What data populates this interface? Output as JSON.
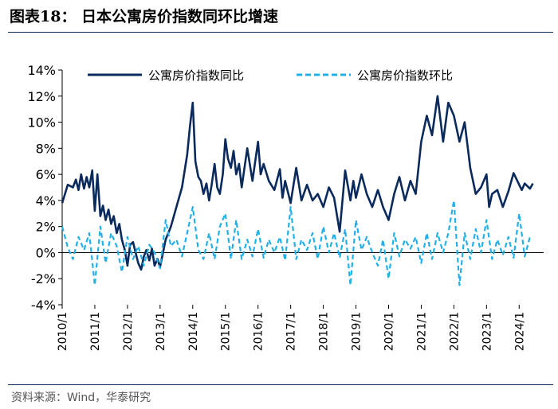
{
  "header": {
    "title": "图表18：  日本公寓房价指数同环比增速"
  },
  "footer": {
    "source": "资料来源：Wind，华泰研究"
  },
  "colors": {
    "yoy": "#0b2a5c",
    "mom": "#22b0e8",
    "rule": "#0b2a5c"
  },
  "chart_data": {
    "type": "line",
    "title": "日本公寓房价指数同环比增速",
    "xlabel": "",
    "ylabel": "",
    "ylim": [
      -4,
      14
    ],
    "xlim": [
      2010,
      2024.75
    ],
    "yticks": [
      -4,
      -2,
      0,
      2,
      4,
      6,
      8,
      10,
      12,
      14
    ],
    "yticklabels": [
      "-4%",
      "-2%",
      "0%",
      "2%",
      "4%",
      "6%",
      "8%",
      "10%",
      "12%",
      "14%"
    ],
    "xticks": [
      2010,
      2011,
      2012,
      2013,
      2014,
      2015,
      2016,
      2017,
      2018,
      2019,
      2020,
      2021,
      2022,
      2023,
      2024
    ],
    "xticklabels": [
      "2010/1",
      "2011/1",
      "2012/1",
      "2013/1",
      "2014/1",
      "2015/1",
      "2016/1",
      "2017/1",
      "2018/1",
      "2019/1",
      "2020/1",
      "2021/1",
      "2022/1",
      "2023/1",
      "2024/1"
    ],
    "legend_position": "top",
    "series": [
      {
        "name": "公寓房价指数同比",
        "style": "solid",
        "x": [
          2010.0,
          2010.17,
          2010.33,
          2010.42,
          2010.5,
          2010.58,
          2010.67,
          2010.75,
          2010.83,
          2010.92,
          2011.0,
          2011.08,
          2011.17,
          2011.25,
          2011.33,
          2011.42,
          2011.5,
          2011.58,
          2011.67,
          2011.75,
          2011.83,
          2011.92,
          2012.0,
          2012.08,
          2012.17,
          2012.25,
          2012.33,
          2012.42,
          2012.5,
          2012.58,
          2012.67,
          2012.75,
          2012.83,
          2012.92,
          2013.0,
          2013.17,
          2013.33,
          2013.5,
          2013.67,
          2013.83,
          2013.92,
          2014.0,
          2014.08,
          2014.17,
          2014.25,
          2014.33,
          2014.42,
          2014.5,
          2014.58,
          2014.67,
          2014.75,
          2014.83,
          2014.92,
          2015.0,
          2015.08,
          2015.17,
          2015.25,
          2015.33,
          2015.42,
          2015.5,
          2015.67,
          2015.83,
          2016.0,
          2016.08,
          2016.17,
          2016.33,
          2016.5,
          2016.67,
          2016.75,
          2016.83,
          2017.0,
          2017.17,
          2017.33,
          2017.5,
          2017.67,
          2017.83,
          2018.0,
          2018.17,
          2018.33,
          2018.5,
          2018.67,
          2018.83,
          2018.92,
          2019.0,
          2019.17,
          2019.33,
          2019.5,
          2019.67,
          2019.83,
          2020.0,
          2020.17,
          2020.33,
          2020.5,
          2020.67,
          2020.83,
          2021.0,
          2021.17,
          2021.33,
          2021.5,
          2021.67,
          2021.83,
          2022.0,
          2022.17,
          2022.33,
          2022.5,
          2022.67,
          2022.83,
          2023.0,
          2023.08,
          2023.17,
          2023.33,
          2023.5,
          2023.67,
          2023.83,
          2024.0,
          2024.08,
          2024.17,
          2024.33,
          2024.42
        ],
        "values": [
          3.8,
          5.2,
          5.0,
          5.6,
          4.8,
          6.0,
          4.9,
          5.8,
          5.0,
          6.3,
          3.2,
          6.0,
          2.8,
          3.6,
          2.5,
          3.3,
          2.2,
          2.8,
          1.5,
          2.2,
          1.0,
          0.2,
          -1.0,
          0.6,
          0.8,
          0.0,
          -0.8,
          -1.3,
          -0.3,
          0.2,
          -0.6,
          0.3,
          -1.0,
          -0.5,
          -1.1,
          1.0,
          2.0,
          3.5,
          5.0,
          7.5,
          9.8,
          11.5,
          7.0,
          5.8,
          5.5,
          4.5,
          5.3,
          4.0,
          5.2,
          6.8,
          5.0,
          4.5,
          6.0,
          8.7,
          7.2,
          6.5,
          7.8,
          6.0,
          6.8,
          5.0,
          8.0,
          5.5,
          8.5,
          6.0,
          6.8,
          5.5,
          4.8,
          6.4,
          4.2,
          5.5,
          3.8,
          6.5,
          4.0,
          5.2,
          4.0,
          4.5,
          3.5,
          5.0,
          4.2,
          1.6,
          6.3,
          4.0,
          5.5,
          4.2,
          6.0,
          4.5,
          3.5,
          4.8,
          3.5,
          2.5,
          4.5,
          5.8,
          4.0,
          5.5,
          4.5,
          8.5,
          10.5,
          9.0,
          12.0,
          8.5,
          11.5,
          10.5,
          8.5,
          10.0,
          6.5,
          4.5,
          5.0,
          6.0,
          3.5,
          4.5,
          4.8,
          3.5,
          4.7,
          6.1,
          5.2,
          4.8,
          5.3,
          4.9,
          5.3
        ]
      },
      {
        "name": "公寓房价指数环比",
        "style": "dashed",
        "x": [
          2010.0,
          2010.17,
          2010.33,
          2010.5,
          2010.67,
          2010.83,
          2011.0,
          2011.17,
          2011.33,
          2011.5,
          2011.67,
          2011.83,
          2012.0,
          2012.17,
          2012.33,
          2012.5,
          2012.67,
          2012.83,
          2013.0,
          2013.17,
          2013.33,
          2013.5,
          2013.67,
          2013.83,
          2014.0,
          2014.17,
          2014.33,
          2014.5,
          2014.67,
          2014.83,
          2015.0,
          2015.17,
          2015.33,
          2015.5,
          2015.67,
          2015.83,
          2016.0,
          2016.17,
          2016.33,
          2016.5,
          2016.67,
          2016.83,
          2017.0,
          2017.17,
          2017.33,
          2017.5,
          2017.67,
          2017.83,
          2018.0,
          2018.17,
          2018.33,
          2018.5,
          2018.67,
          2018.83,
          2019.0,
          2019.17,
          2019.33,
          2019.5,
          2019.67,
          2019.83,
          2020.0,
          2020.17,
          2020.33,
          2020.5,
          2020.67,
          2020.83,
          2021.0,
          2021.17,
          2021.33,
          2021.5,
          2021.67,
          2021.83,
          2022.0,
          2022.17,
          2022.33,
          2022.5,
          2022.67,
          2022.83,
          2023.0,
          2023.17,
          2023.33,
          2023.5,
          2023.67,
          2023.83,
          2024.0,
          2024.17,
          2024.33
        ],
        "values": [
          2.0,
          0.4,
          -0.5,
          1.2,
          0.2,
          1.5,
          -2.5,
          2.0,
          -0.8,
          1.5,
          0.5,
          -1.5,
          1.2,
          -0.5,
          0.5,
          -1.0,
          0.6,
          0.0,
          -1.2,
          2.5,
          0.5,
          1.0,
          -0.3,
          1.5,
          3.5,
          0.2,
          -0.5,
          1.5,
          -0.5,
          2.0,
          3.0,
          -0.5,
          2.5,
          -0.5,
          1.0,
          -0.3,
          1.8,
          -0.4,
          1.0,
          0.0,
          1.2,
          -0.6,
          3.5,
          -0.5,
          1.0,
          0.2,
          1.5,
          -0.5,
          2.0,
          0.0,
          1.5,
          -0.4,
          1.8,
          -2.5,
          2.5,
          0.2,
          1.2,
          0.0,
          -1.0,
          1.0,
          -2.0,
          1.5,
          -0.3,
          1.0,
          0.3,
          1.2,
          -0.8,
          1.5,
          -0.5,
          1.5,
          0.0,
          1.5,
          4.0,
          -2.5,
          1.5,
          -0.5,
          1.8,
          0.0,
          2.5,
          -0.5,
          1.0,
          -0.2,
          1.2,
          -0.4,
          3.0,
          -0.3,
          1.2
        ]
      }
    ]
  }
}
